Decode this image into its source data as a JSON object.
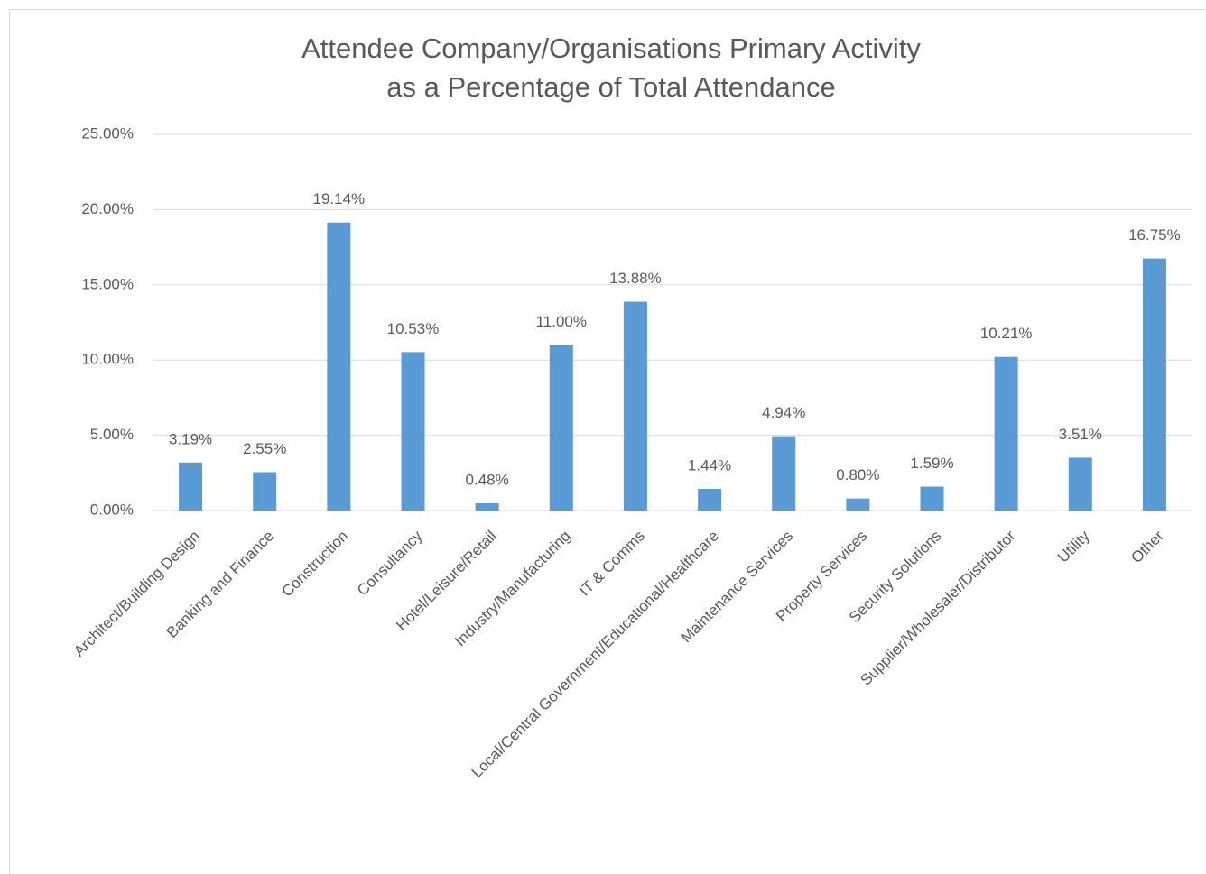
{
  "chart_data": {
    "type": "bar",
    "title": [
      "Attendee Company/Organisations Primary Activity",
      "as a Percentage of Total Attendance"
    ],
    "categories": [
      "Architect/Building Design",
      "Banking and Finance",
      "Construction",
      "Consultancy",
      "Hotel/Leisure/Retail",
      "Industry/Manufacturing",
      "IT & Comms",
      "Local/Central Government/Educational/Healthcare",
      "Maintenance Services",
      "Property Services",
      "Security Solutions",
      "Supplier/Wholesaler/Distributor",
      "Utility",
      "Other"
    ],
    "values": [
      3.19,
      2.55,
      19.14,
      10.53,
      0.48,
      11.0,
      13.88,
      1.44,
      4.94,
      0.8,
      1.59,
      10.21,
      3.51,
      16.75
    ],
    "value_labels": [
      "3.19%",
      "2.55%",
      "19.14%",
      "10.53%",
      "0.48%",
      "11.00%",
      "13.88%",
      "1.44%",
      "4.94%",
      "0.80%",
      "1.59%",
      "10.21%",
      "3.51%",
      "16.75%"
    ],
    "color": "#5b9bd5",
    "ylim": [
      0,
      25
    ],
    "yticks": [
      {
        "value": 0,
        "label": "0.00%"
      },
      {
        "value": 5,
        "label": "5.00%"
      },
      {
        "value": 10,
        "label": "10.00%"
      },
      {
        "value": 15,
        "label": "15.00%"
      },
      {
        "value": 20,
        "label": "20.00%"
      },
      {
        "value": 25,
        "label": "25.00%"
      }
    ],
    "grid": true
  }
}
